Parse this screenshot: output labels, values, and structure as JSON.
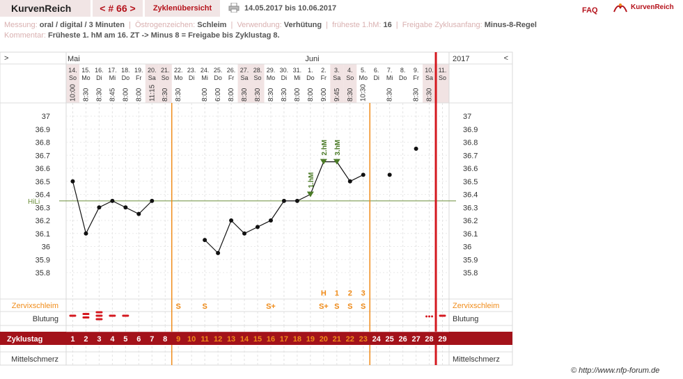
{
  "header": {
    "brand": "KurvenReich",
    "cycle_nav": "< # 66 >",
    "overview_tab": "Zyklenübersicht",
    "date_range": "14.05.2017 bis 10.06.2017",
    "faq": "FAQ",
    "logo_text": "KurvenReich",
    "printer_icon": "printer-icon"
  },
  "meta": {
    "messung_label": "Messung:",
    "messung_value": "oral / digital / 3 Minuten",
    "oestrogen_label": "Östrogenzeichen:",
    "oestrogen_value": "Schleim",
    "verwendung_label": "Verwendung:",
    "verwendung_value": "Verhütung",
    "fhm_label": "früheste 1.hM:",
    "fhm_value": "16",
    "freigabe_label": "Freigabe Zyklusanfang:",
    "freigabe_value": "Minus-8-Regel",
    "kommentar_label": "Kommentar:",
    "kommentar_value": "Früheste 1. hM am 16. ZT -> Minus 8 = Freigabe bis Zyklustag 8."
  },
  "chart_data": {
    "type": "line",
    "title": "",
    "months": [
      {
        "label": "Mai",
        "start_index": 0
      },
      {
        "label": "Juni",
        "start_index": 18
      }
    ],
    "year": "2017",
    "nav_left": ">",
    "nav_right": "<",
    "dates": [
      "14.",
      "15.",
      "16.",
      "17.",
      "18.",
      "19.",
      "20.",
      "21.",
      "22.",
      "23.",
      "24.",
      "25.",
      "26.",
      "27.",
      "28.",
      "29.",
      "30.",
      "31.",
      "1.",
      "2.",
      "3.",
      "4.",
      "5.",
      "6.",
      "7.",
      "8.",
      "9.",
      "10.",
      "11."
    ],
    "weekdays": [
      "So",
      "Mo",
      "Di",
      "Mi",
      "Do",
      "Fr",
      "Sa",
      "So",
      "Mo",
      "Di",
      "Mi",
      "Do",
      "Fr",
      "Sa",
      "So",
      "Mo",
      "Di",
      "Mi",
      "Do",
      "Fr",
      "Sa",
      "So",
      "Mo",
      "Di",
      "Mi",
      "Do",
      "Fr",
      "Sa",
      "So"
    ],
    "weekend": [
      true,
      false,
      false,
      false,
      false,
      false,
      true,
      true,
      false,
      false,
      false,
      false,
      false,
      true,
      true,
      false,
      false,
      false,
      false,
      false,
      true,
      true,
      false,
      false,
      false,
      false,
      false,
      true,
      true
    ],
    "times": [
      "10:00",
      "8:30",
      "8:30",
      "8:45",
      "8:00",
      "8:00",
      "11:15",
      "8:30",
      "8:30",
      "",
      "8:00",
      "6:00",
      "8:00",
      "8:30",
      "8:30",
      "8:30",
      "8:30",
      "8:00",
      "8:00",
      "9:00",
      "9:45",
      "8:30",
      "10:30",
      "",
      "8:30",
      "",
      "8:30",
      "8:30",
      ""
    ],
    "ytick_labels": [
      "37",
      "36.9",
      "36.8",
      "36.7",
      "36.6",
      "36.5",
      "36.4",
      "36.3",
      "36.2",
      "36.1",
      "36",
      "35.9",
      "35.8"
    ],
    "ylim": [
      35.8,
      37.0
    ],
    "temperatures": [
      36.5,
      36.1,
      36.3,
      36.35,
      36.3,
      36.25,
      36.35,
      null,
      null,
      null,
      36.05,
      35.95,
      36.2,
      36.1,
      36.15,
      36.2,
      36.35,
      36.35,
      36.4,
      36.65,
      36.65,
      36.5,
      36.55,
      null,
      36.55,
      null,
      36.75,
      null,
      null
    ],
    "line_breaks_after": [
      6,
      22
    ],
    "hm_markers": [
      {
        "index": 18,
        "label": "1.hM"
      },
      {
        "index": 19,
        "label": "2.hM"
      },
      {
        "index": 20,
        "label": "3.hM"
      }
    ],
    "hili": {
      "label": "HiLi",
      "value": 36.35
    },
    "vertical_lines": {
      "orange": [
        7.5,
        22.5
      ],
      "red": 27.5
    },
    "cervix_top_labels": [
      {
        "index": 19,
        "text": "H"
      },
      {
        "index": 20,
        "text": "1"
      },
      {
        "index": 21,
        "text": "2"
      },
      {
        "index": 22,
        "text": "3"
      }
    ],
    "cervix_label": "Zervixschleim",
    "cervix": [
      {
        "index": 8,
        "text": "S"
      },
      {
        "index": 10,
        "text": "S"
      },
      {
        "index": 15,
        "text": "S+"
      },
      {
        "index": 19,
        "text": "S+"
      },
      {
        "index": 20,
        "text": "S"
      },
      {
        "index": 21,
        "text": "S"
      },
      {
        "index": 22,
        "text": "S"
      }
    ],
    "bleeding_label": "Blutung",
    "bleeding": [
      {
        "index": 0,
        "level": 1
      },
      {
        "index": 1,
        "level": 2
      },
      {
        "index": 2,
        "level": 3
      },
      {
        "index": 3,
        "level": 1
      },
      {
        "index": 4,
        "level": 1
      },
      {
        "index": 27,
        "level": "spot"
      },
      {
        "index": 28,
        "level": 1
      }
    ],
    "cycle_day_label": "Zyklustag",
    "cycle_days": [
      "1",
      "2",
      "3",
      "4",
      "5",
      "6",
      "7",
      "8",
      "9",
      "10",
      "11",
      "12",
      "13",
      "14",
      "15",
      "16",
      "17",
      "18",
      "19",
      "20",
      "21",
      "22",
      "23",
      "24",
      "25",
      "26",
      "27",
      "28",
      "29"
    ],
    "pain_label": "Mittelschmerz",
    "colors": {
      "accent": "#b5121b",
      "orange": "#f08c1a",
      "green": "#4a7a26",
      "hili": "#6b8e3a"
    }
  },
  "footer": {
    "copyright": "© http://www.nfp-forum.de"
  }
}
